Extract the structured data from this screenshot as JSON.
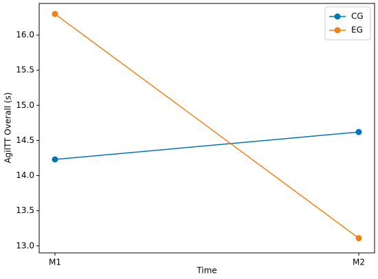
{
  "chart_data": {
    "type": "line",
    "xlabel": "Time",
    "ylabel": "AgilTT Overall (s)",
    "categories": [
      "M1",
      "M2"
    ],
    "series": [
      {
        "name": "CG",
        "color": "#0173b2",
        "values": [
          14.23,
          14.62
        ]
      },
      {
        "name": "EG",
        "color": "#ee8213",
        "values": [
          16.3,
          13.11
        ]
      }
    ],
    "ylim": [
      12.9,
      16.45
    ],
    "yticks": [
      {
        "value": 13,
        "label": "13.0"
      },
      13.5,
      {
        "value": 14,
        "label": "14.0"
      },
      14.5,
      {
        "value": 15,
        "label": "15.0"
      },
      15.5,
      {
        "value": 16,
        "label": "16.0"
      }
    ],
    "legend": "upper right"
  }
}
